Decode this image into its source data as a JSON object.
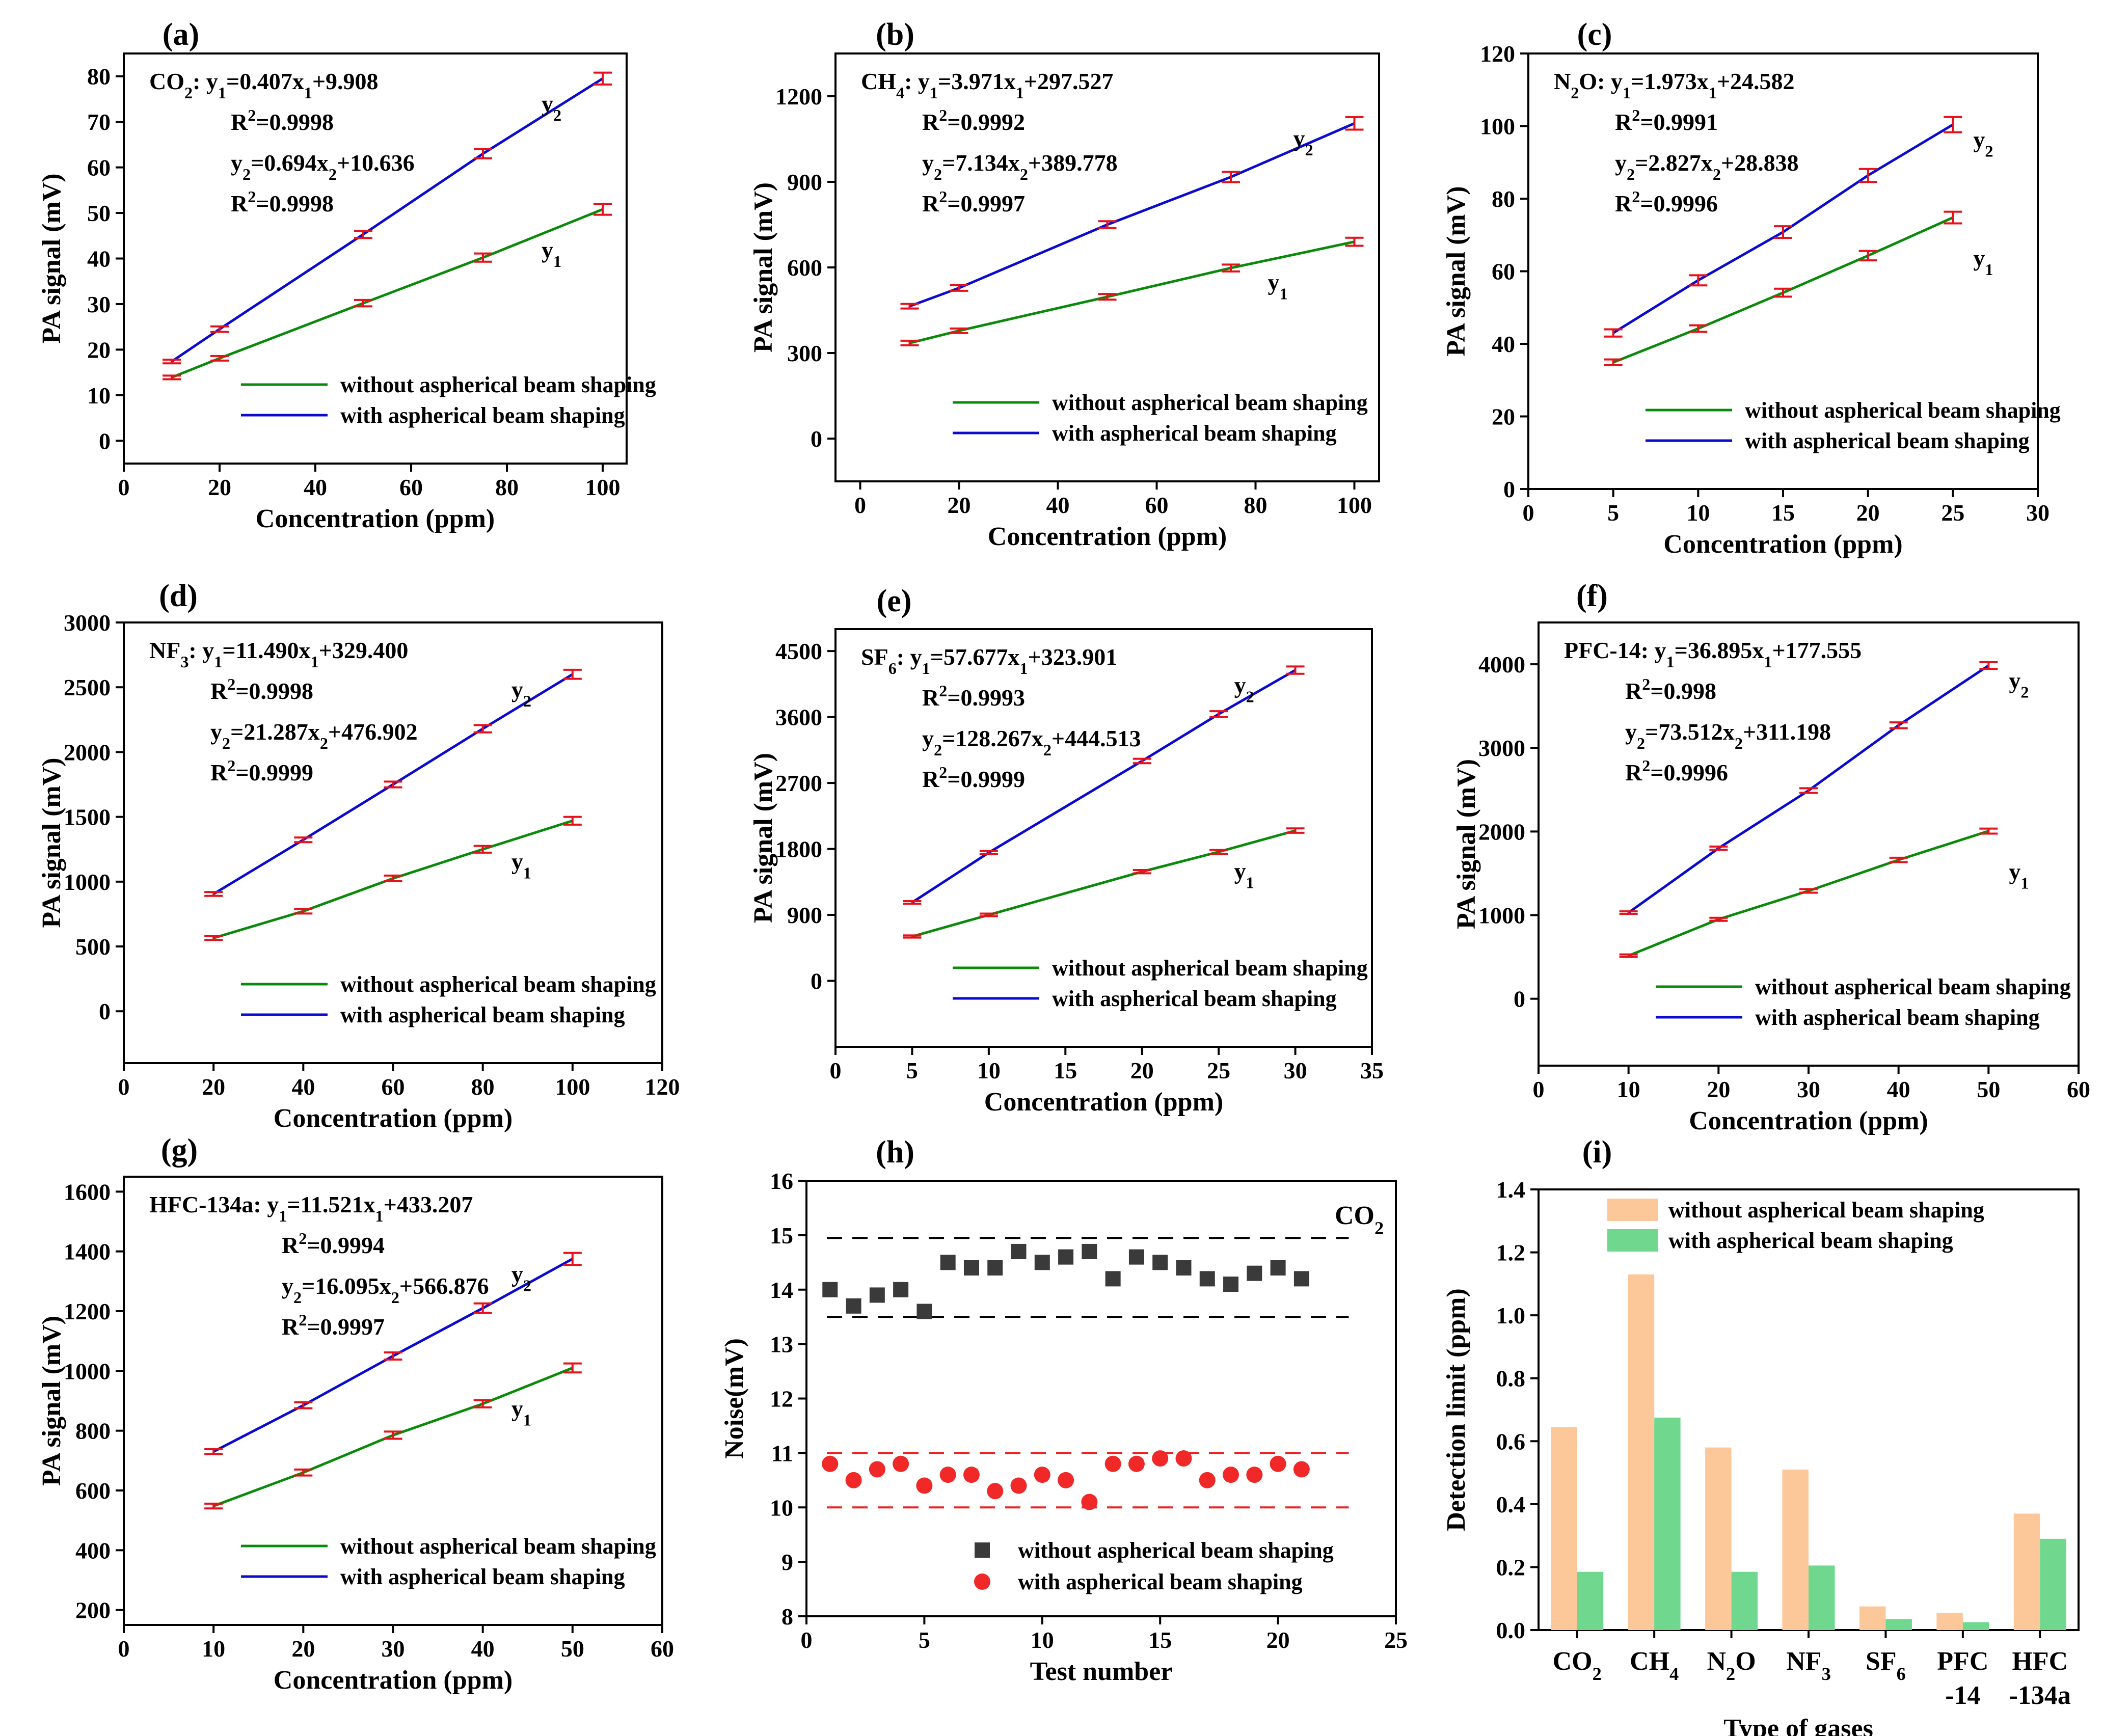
{
  "colors": {
    "without": "#0a8a0a",
    "with": "#0a0ad0",
    "errorbar": "#e8101a",
    "scatter_without": "#3a3a3a",
    "scatter_with": "#f02828",
    "bar_without": "#fcc89a",
    "bar_with": "#6fd88e",
    "dashed_without": "#000000",
    "dashed_with": "#f02020"
  },
  "legend": {
    "without": "without aspherical beam shaping",
    "with": "with aspherical beam shaping"
  },
  "chart_data": [
    {
      "id": "a",
      "panel": "(a)",
      "type": "line",
      "xlabel": "Concentration (ppm)",
      "ylabel": "PA signal (mV)",
      "xlim": [
        0,
        105
      ],
      "ylim": [
        -5,
        85
      ],
      "xticks": [
        0,
        20,
        40,
        60,
        80,
        100
      ],
      "yticks": [
        0,
        10,
        20,
        30,
        40,
        50,
        60,
        70,
        80
      ],
      "series": [
        {
          "name": "without aspherical beam shaping",
          "label": "y",
          "sub": "1",
          "x": [
            10,
            20,
            50,
            75,
            100
          ],
          "y": [
            13.9,
            18.1,
            30.2,
            40.2,
            50.8
          ],
          "err": [
            0.4,
            0.5,
            0.7,
            0.9,
            1.2
          ]
        },
        {
          "name": "with aspherical beam shaping",
          "label": "y",
          "sub": "2",
          "x": [
            10,
            20,
            50,
            75,
            100
          ],
          "y": [
            17.4,
            24.5,
            45.3,
            63.0,
            79.5
          ],
          "err": [
            0.4,
            0.6,
            0.8,
            1.0,
            1.3
          ]
        }
      ],
      "annotations": [
        {
          "prefix": "CO",
          "gsub": "2",
          "text": ": y",
          "s1": "1",
          "t2": "=0.407x",
          "s2": "1",
          "t3": "+9.908"
        },
        {
          "r2": "=0.9998"
        },
        {
          "text": "y",
          "s1": "2",
          "t2": "=0.694x",
          "s2": "2",
          "t3": "+10.636"
        },
        {
          "r2": "=0.9998"
        }
      ]
    },
    {
      "id": "b",
      "panel": "(b)",
      "type": "line",
      "xlabel": "Concentration (ppm)",
      "ylabel": "PA signal (mV)",
      "xlim": [
        -5,
        105
      ],
      "ylim": [
        -150,
        1350
      ],
      "xticks": [
        0,
        20,
        40,
        60,
        80,
        100
      ],
      "yticks": [
        0,
        300,
        600,
        900,
        1200
      ],
      "series": [
        {
          "name": "without aspherical beam shaping",
          "label": "y",
          "sub": "1",
          "x": [
            10,
            20,
            50,
            75,
            100
          ],
          "y": [
            335,
            378,
            497,
            598,
            690
          ],
          "err": [
            8,
            8,
            10,
            12,
            14
          ]
        },
        {
          "name": "with aspherical beam shaping",
          "label": "y",
          "sub": "2",
          "x": [
            10,
            20,
            50,
            75,
            100
          ],
          "y": [
            464,
            528,
            750,
            917,
            1105
          ],
          "err": [
            8,
            10,
            12,
            18,
            22
          ]
        }
      ],
      "annotations": [
        {
          "prefix": "CH",
          "gsub": "4",
          "text": ": y",
          "s1": "1",
          "t2": "=3.971x",
          "s2": "1",
          "t3": "+297.527"
        },
        {
          "r2": "=0.9992"
        },
        {
          "text": "y",
          "s1": "2",
          "t2": "=7.134x",
          "s2": "2",
          "t3": "+389.778"
        },
        {
          "r2": "=0.9997"
        }
      ]
    },
    {
      "id": "c",
      "panel": "(c)",
      "type": "line",
      "xlabel": "Concentration (ppm)",
      "ylabel": "PA signal (mV)",
      "xlim": [
        0,
        30
      ],
      "ylim": [
        0,
        120
      ],
      "xticks": [
        0,
        5,
        10,
        15,
        20,
        25,
        30
      ],
      "yticks": [
        0,
        20,
        40,
        60,
        80,
        100,
        120
      ],
      "series": [
        {
          "name": "without aspherical beam shaping",
          "label": "y",
          "sub": "1",
          "x": [
            5,
            10,
            15,
            20,
            25
          ],
          "y": [
            34.9,
            44.2,
            54.1,
            64.3,
            74.8
          ],
          "err": [
            0.8,
            0.9,
            1.1,
            1.3,
            1.6
          ]
        },
        {
          "name": "with aspherical beam shaping",
          "label": "y",
          "sub": "2",
          "x": [
            5,
            10,
            15,
            20,
            25
          ],
          "y": [
            43.0,
            57.5,
            70.8,
            86.4,
            100.4
          ],
          "err": [
            1.0,
            1.4,
            1.6,
            1.8,
            2.1
          ]
        }
      ],
      "annotations": [
        {
          "prefix": "N",
          "gsub": "2",
          "text": "O: y",
          "s1": "1",
          "t2": "=1.973x",
          "s2": "1",
          "t3": "+24.582"
        },
        {
          "r2": "=0.9991"
        },
        {
          "text": "y",
          "s1": "2",
          "t2": "=2.827x",
          "s2": "2",
          "t3": "+28.838"
        },
        {
          "r2": "=0.9996"
        }
      ]
    },
    {
      "id": "d",
      "panel": "(d)",
      "type": "line",
      "xlabel": "Concentration (ppm)",
      "ylabel": "PA signal (mV)",
      "xlim": [
        0,
        120
      ],
      "ylim": [
        -400,
        3000
      ],
      "xticks": [
        0,
        20,
        40,
        60,
        80,
        100,
        120
      ],
      "yticks": [
        0,
        500,
        1000,
        1500,
        2000,
        2500,
        3000
      ],
      "series": [
        {
          "name": "without aspherical beam shaping",
          "label": "y",
          "sub": "1",
          "x": [
            20,
            40,
            60,
            80,
            100
          ],
          "y": [
            565,
            772,
            1025,
            1250,
            1470
          ],
          "err": [
            15,
            18,
            22,
            26,
            30
          ]
        },
        {
          "name": "with aspherical beam shaping",
          "label": "y",
          "sub": "2",
          "x": [
            20,
            40,
            60,
            80,
            100
          ],
          "y": [
            905,
            1323,
            1750,
            2180,
            2600
          ],
          "err": [
            15,
            18,
            22,
            28,
            35
          ]
        }
      ],
      "annotations": [
        {
          "prefix": "NF",
          "gsub": "3",
          "text": ": y",
          "s1": "1",
          "t2": "=11.490x",
          "s2": "1",
          "t3": "+329.400"
        },
        {
          "r2": "=0.9998"
        },
        {
          "text": "y",
          "s1": "2",
          "t2": "=21.287x",
          "s2": "2",
          "t3": "+476.902"
        },
        {
          "r2": "=0.9999"
        }
      ]
    },
    {
      "id": "e",
      "panel": "(e)",
      "type": "line",
      "xlabel": "Concentration (ppm)",
      "ylabel": "PA signal (mV)",
      "xlim": [
        0,
        35
      ],
      "ylim": [
        -900,
        4800
      ],
      "xticks": [
        0,
        5,
        10,
        15,
        20,
        25,
        30,
        35
      ],
      "yticks": [
        0,
        900,
        1800,
        2700,
        3600,
        4500
      ],
      "series": [
        {
          "name": "without aspherical beam shaping",
          "label": "y",
          "sub": "1",
          "x": [
            5,
            10,
            20,
            25,
            30
          ],
          "y": [
            605,
            900,
            1490,
            1760,
            2050
          ],
          "err": [
            15,
            18,
            22,
            26,
            30
          ]
        },
        {
          "name": "with aspherical beam shaping",
          "label": "y",
          "sub": "2",
          "x": [
            5,
            10,
            20,
            25,
            30
          ],
          "y": [
            1070,
            1750,
            3000,
            3640,
            4240
          ],
          "err": [
            18,
            22,
            30,
            40,
            50
          ]
        }
      ],
      "annotations": [
        {
          "prefix": "SF",
          "gsub": "6",
          "text": ": y",
          "s1": "1",
          "t2": "=57.677x",
          "s2": "1",
          "t3": "+323.901"
        },
        {
          "r2": "=0.9993"
        },
        {
          "text": "y",
          "s1": "2",
          "t2": "=128.267x",
          "s2": "2",
          "t3": "+444.513"
        },
        {
          "r2": "=0.9999"
        }
      ]
    },
    {
      "id": "f",
      "panel": "(f)",
      "type": "line",
      "xlabel": "Concentration (ppm)",
      "ylabel": "PA signal (mV)",
      "xlim": [
        0,
        60
      ],
      "ylim": [
        -800,
        4500
      ],
      "xticks": [
        0,
        10,
        20,
        30,
        40,
        50,
        60
      ],
      "yticks": [
        0,
        1000,
        2000,
        3000,
        4000
      ],
      "series": [
        {
          "name": "without aspherical beam shaping",
          "label": "y",
          "sub": "1",
          "x": [
            10,
            20,
            30,
            40,
            50
          ],
          "y": [
            515,
            950,
            1290,
            1660,
            2005
          ],
          "err": [
            15,
            18,
            22,
            26,
            30
          ]
        },
        {
          "name": "with aspherical beam shaping",
          "label": "y",
          "sub": "2",
          "x": [
            10,
            20,
            30,
            40,
            50
          ],
          "y": [
            1030,
            1800,
            2490,
            3270,
            3985
          ],
          "err": [
            15,
            20,
            28,
            35,
            40
          ]
        }
      ],
      "annotations": [
        {
          "prefix": "PFC-14: y",
          "gsub": "",
          "text": "",
          "s1": "1",
          "t2": "=36.895x",
          "s2": "1",
          "t3": "+177.555"
        },
        {
          "r2": "=0.998"
        },
        {
          "text": "y",
          "s1": "2",
          "t2": "=73.512x",
          "s2": "2",
          "t3": "+311.198"
        },
        {
          "r2": "=0.9996"
        }
      ]
    },
    {
      "id": "g",
      "panel": "(g)",
      "type": "line",
      "xlabel": "Concentration (ppm)",
      "ylabel": "PA signal (mV)",
      "xlim": [
        0,
        60
      ],
      "ylim": [
        150,
        1650
      ],
      "xticks": [
        0,
        10,
        20,
        30,
        40,
        50,
        60
      ],
      "yticks": [
        200,
        400,
        600,
        800,
        1000,
        1200,
        1400,
        1600
      ],
      "series": [
        {
          "name": "without aspherical beam shaping",
          "label": "y",
          "sub": "1",
          "x": [
            10,
            20,
            30,
            40,
            50
          ],
          "y": [
            548,
            660,
            785,
            890,
            1010
          ],
          "err": [
            8,
            10,
            12,
            12,
            15
          ]
        },
        {
          "name": "with aspherical beam shaping",
          "label": "y",
          "sub": "2",
          "x": [
            10,
            20,
            30,
            40,
            50
          ],
          "y": [
            730,
            885,
            1050,
            1210,
            1375
          ],
          "err": [
            8,
            10,
            12,
            16,
            20
          ]
        }
      ],
      "annotations": [
        {
          "prefix": "HFC-134a: y",
          "gsub": "",
          "text": "",
          "s1": "1",
          "t2": "=11.521x",
          "s2": "1",
          "t3": "+433.207"
        },
        {
          "r2": "=0.9994"
        },
        {
          "text": "y",
          "s1": "2",
          "t2": "=16.095x",
          "s2": "2",
          "t3": "+566.876"
        },
        {
          "r2": "=0.9997"
        }
      ]
    },
    {
      "id": "h",
      "panel": "(h)",
      "type": "scatter",
      "title": "CO",
      "title_sub": "2",
      "xlabel": "Test number",
      "ylabel": "Noise(mV)",
      "xlim": [
        0,
        25
      ],
      "ylim": [
        8,
        16
      ],
      "xticks": [
        0,
        5,
        10,
        15,
        20,
        25
      ],
      "yticks": [
        8,
        9,
        10,
        11,
        12,
        13,
        14,
        15,
        16
      ],
      "series": [
        {
          "name": "without aspherical beam shaping",
          "x": [
            1,
            2,
            3,
            4,
            5,
            6,
            7,
            8,
            9,
            10,
            11,
            12,
            13,
            14,
            15,
            16,
            17,
            18,
            19,
            20,
            21
          ],
          "y": [
            14.0,
            13.7,
            13.9,
            14.0,
            13.6,
            14.5,
            14.4,
            14.4,
            14.7,
            14.5,
            14.6,
            14.7,
            14.2,
            14.6,
            14.5,
            14.4,
            14.2,
            14.1,
            14.3,
            14.4,
            14.2
          ]
        },
        {
          "name": "with aspherical beam shaping",
          "x": [
            1,
            2,
            3,
            4,
            5,
            6,
            7,
            8,
            9,
            10,
            11,
            12,
            13,
            14,
            15,
            16,
            17,
            18,
            19,
            20,
            21
          ],
          "y": [
            10.8,
            10.5,
            10.7,
            10.8,
            10.4,
            10.6,
            10.6,
            10.3,
            10.4,
            10.6,
            10.5,
            10.1,
            10.8,
            10.8,
            10.9,
            10.9,
            10.5,
            10.6,
            10.6,
            10.8,
            10.7
          ]
        }
      ],
      "hlines": [
        {
          "series": "without",
          "y": [
            13.5,
            14.95
          ],
          "x_end": 23
        },
        {
          "series": "with",
          "y": [
            10.0,
            11.0
          ],
          "x_end": 23
        }
      ]
    },
    {
      "id": "i",
      "panel": "(i)",
      "type": "bar",
      "xlabel": "Type of gases",
      "ylabel": "Detection limit (ppm)",
      "ylim": [
        0,
        1.4
      ],
      "yticks": [
        "0.0",
        "0.2",
        "0.4",
        "0.6",
        "0.8",
        "1.0",
        "1.2",
        "1.4"
      ],
      "categories": [
        {
          "main": "CO",
          "sub": "2",
          "line2": ""
        },
        {
          "main": "CH",
          "sub": "4",
          "line2": ""
        },
        {
          "main": "N",
          "sub": "2",
          "tail": "O",
          "line2": ""
        },
        {
          "main": "NF",
          "sub": "3",
          "line2": ""
        },
        {
          "main": "SF",
          "sub": "6",
          "line2": ""
        },
        {
          "main": "PFC",
          "sub": "",
          "line2": "-14"
        },
        {
          "main": "HFC",
          "sub": "",
          "line2": "-134a"
        }
      ],
      "series": [
        {
          "name": "without aspherical beam shaping",
          "values": [
            0.645,
            1.13,
            0.58,
            0.51,
            0.075,
            0.055,
            0.37
          ]
        },
        {
          "name": "with aspherical beam shaping",
          "values": [
            0.185,
            0.675,
            0.185,
            0.205,
            0.035,
            0.025,
            0.29
          ]
        }
      ]
    }
  ]
}
